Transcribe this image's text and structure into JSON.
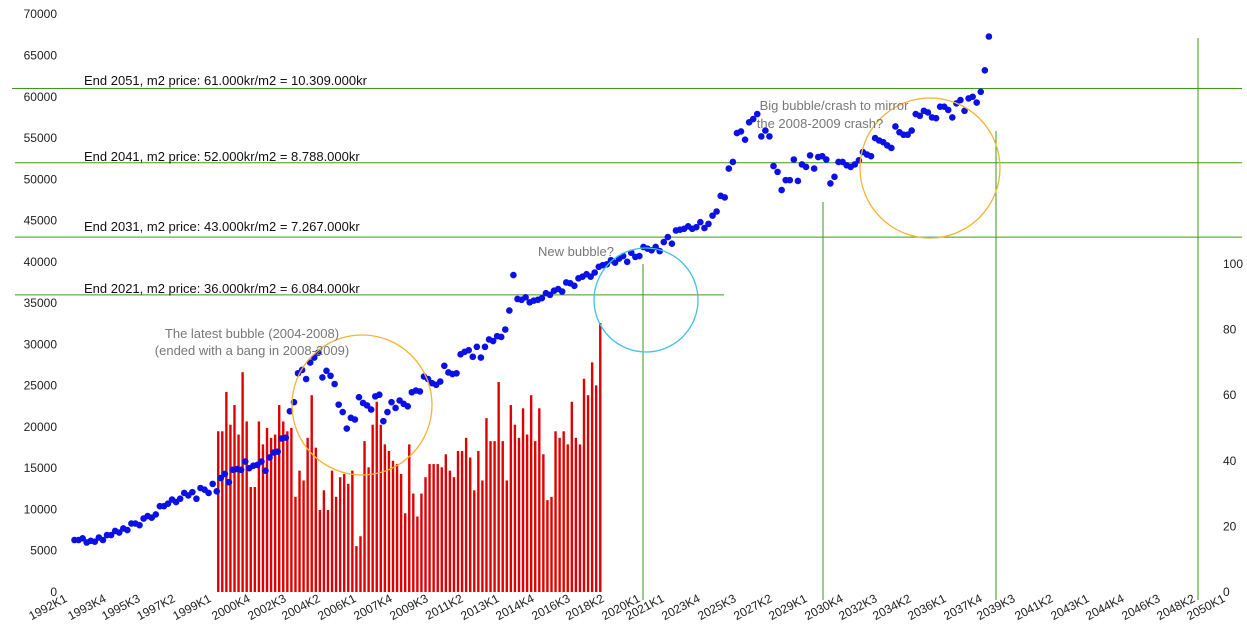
{
  "chart_data": {
    "type": "scatter",
    "y_left": {
      "min": 0,
      "max": 70000,
      "step": 5000
    },
    "y_right": {
      "min": 0,
      "max": 100,
      "ticks": [
        0,
        20,
        40,
        60,
        80,
        100
      ]
    },
    "x_tick_labels": [
      "1992K1",
      "1993K4",
      "1995K3",
      "1997K2",
      "1999K1",
      "2000K4",
      "2002K3",
      "2004K2",
      "2006K1",
      "2007K4",
      "2009K3",
      "2011K2",
      "2013K1",
      "2014K4",
      "2016K3",
      "2018K2",
      "2020K1",
      "2021K1",
      "2023K4",
      "2025K3",
      "2027K2",
      "2029K1",
      "2030K4",
      "2032K3",
      "2034K2",
      "2036K1",
      "2037K4",
      "2039K3",
      "2041K2",
      "2043K1",
      "2044K4",
      "2046K3",
      "2048K2",
      "2050K1"
    ],
    "series": [
      {
        "kind": "scatter",
        "color": "#0a10e6",
        "axis": "left",
        "start_year": 1992,
        "quarters_per_year": 4,
        "values": [
          6300,
          6300,
          6500,
          6000,
          6200,
          6100,
          6600,
          6300,
          6900,
          6900,
          7400,
          7200,
          7700,
          7500,
          8300,
          8300,
          8100,
          8900,
          9200,
          9000,
          9400,
          10400,
          10400,
          10700,
          11200,
          10900,
          11300,
          12000,
          11700,
          12100,
          11300,
          12600,
          12400,
          12000,
          13100,
          12200,
          13800,
          14300,
          13300,
          14800,
          14900,
          14800,
          15800,
          15000,
          15300,
          15400,
          15800,
          14700,
          16300,
          16900,
          17000,
          18600,
          18700,
          21900,
          23000,
          26500,
          26900,
          25800,
          27800,
          28400,
          29000,
          26000,
          26800,
          26200,
          25200,
          22700,
          21800,
          19800,
          21100,
          20900,
          23600,
          22900,
          22600,
          22100,
          23700,
          23900,
          20700,
          21800,
          23000,
          22300,
          23200,
          22800,
          22500,
          24200,
          24400,
          24300,
          26100,
          25800,
          25300,
          25100,
          25500,
          27400,
          26600,
          26400,
          26500,
          28800,
          29100,
          29300,
          28500,
          29700,
          28400,
          29700,
          30600,
          30400,
          31000,
          30900,
          31800,
          34100,
          38400,
          35500,
          35400,
          35700,
          35100,
          35300,
          35400,
          35600,
          36200,
          36000,
          36500,
          36700,
          36400,
          37500,
          37400,
          37100,
          38000,
          38200,
          38500,
          38200,
          38700,
          39400,
          39600,
          39700,
          40200,
          39900,
          40400,
          40700,
          40000,
          41100,
          40600,
          40700,
          41800,
          41600,
          41400,
          41800,
          41300,
          42400,
          43000,
          42200,
          43800,
          43900,
          44000,
          44300,
          44000,
          44200,
          44800,
          44100,
          44600,
          45600,
          46100,
          48000,
          47800,
          51300,
          52100,
          55600,
          55800,
          54800,
          56900,
          57300,
          57900,
          55200,
          55900,
          55200,
          51600,
          50900,
          48700,
          49900,
          49900,
          52400,
          49800,
          51800,
          51500,
          52900,
          51300,
          52700,
          52800,
          52400,
          49500,
          50300,
          52100,
          52100,
          51700,
          51500,
          51800,
          52300,
          53300,
          53000,
          52800,
          55000,
          54700,
          54500,
          54100,
          53800,
          56400,
          55700,
          55400,
          55400,
          55900,
          57900,
          57700,
          58300,
          58100,
          57500,
          57400,
          58800,
          58800,
          58400,
          57500,
          59200,
          59600,
          58300,
          59800,
          60000,
          59300,
          60600,
          63200,
          67300
        ]
      },
      {
        "kind": "bar",
        "color": "#e00000",
        "axis": "right",
        "start_year": 2000,
        "start_quarter": 4,
        "values": [
          49,
          49,
          61,
          51,
          57,
          48,
          67,
          52,
          32,
          32,
          52,
          45,
          50,
          47,
          48,
          57,
          52,
          49,
          50,
          29,
          37,
          34,
          47,
          60,
          44,
          25,
          31,
          25,
          37,
          29,
          35,
          36,
          33,
          37,
          14,
          17,
          46,
          38,
          51,
          58,
          51,
          45,
          43,
          40,
          39,
          36,
          24,
          45,
          30,
          23,
          30,
          35,
          39,
          39,
          39,
          38,
          42,
          37,
          35,
          43,
          43,
          47,
          41,
          31,
          43,
          34,
          53,
          46,
          46,
          64,
          46,
          34,
          57,
          51,
          47,
          56,
          48,
          60,
          46,
          56,
          42,
          28,
          29,
          49,
          47,
          49,
          45,
          58,
          47,
          45,
          65,
          60,
          70,
          63,
          82
        ]
      }
    ],
    "reference_lines": [
      {
        "value": 61000,
        "label": "End 2051, m2 price: 61.000kr/m2 = 10.309.000kr"
      },
      {
        "value": 52000,
        "label": "End 2041, m2 price: 52.000kr/m2 = 8.788.000kr"
      },
      {
        "value": 43000,
        "label": "End 2031, m2 price: 43.000kr/m2 = 7.267.000kr"
      },
      {
        "value": 36000,
        "label": "End 2021, m2 price: 36.000kr/m2 = 6.084.000kr"
      }
    ],
    "annotations": [
      {
        "lines": [
          "The latest bubble (2004-2008)",
          "(ended with a bang in 2008-2009)"
        ],
        "circle_color": "#f5b335"
      },
      {
        "lines": [
          "New bubble?"
        ],
        "circle_color": "#3ec3e0"
      },
      {
        "lines": [
          "Big bubble/crash to mirror",
          "the 2008-2009 crash?"
        ],
        "circle_color": "#f5b335"
      }
    ],
    "colors": {
      "reference_line": "#3a9a1a",
      "text_grey": "#777777"
    }
  }
}
